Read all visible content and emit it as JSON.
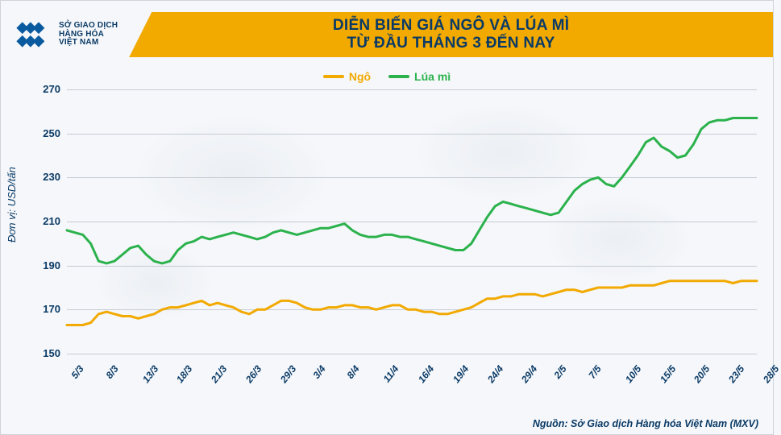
{
  "logo": {
    "line1": "SỞ GIAO DỊCH",
    "line2": "HÀNG HÓA",
    "line3": "VIỆT NAM"
  },
  "title": {
    "line1": "DIỄN BIẾN GIÁ NGÔ VÀ LÚA MÌ",
    "line2": "TỪ ĐẦU THÁNG 3 ĐẾN NAY"
  },
  "legend": [
    {
      "label": "Ngô",
      "color": "#f2a900"
    },
    {
      "label": "Lúa mì",
      "color": "#2bb24c"
    }
  ],
  "y_axis_label": "Đơn vị: USD/tấn",
  "source": "Nguồn: Sở Giao dịch Hàng hóa Việt Nam (MXV)",
  "chart": {
    "type": "line",
    "background_color": "#f5f7fa",
    "grid_color": "#c6ccd4",
    "axis_text_color": "#0a3a66",
    "title_bar_color": "#f2a900",
    "title_text_color": "#0a3a66",
    "ylim": [
      150,
      270
    ],
    "ytick_step": 20,
    "line_width": 3,
    "tick_fontsize": 12,
    "label_fontsize": 13,
    "title_fontsize": 19,
    "x_labels": [
      "5/3",
      "8/3",
      "13/3",
      "18/3",
      "21/3",
      "26/3",
      "29/3",
      "3/4",
      "8/4",
      "11/4",
      "16/4",
      "19/4",
      "24/4",
      "29/4",
      "2/5",
      "7/5",
      "10/5",
      "15/5",
      "20/5",
      "23/5",
      "28/5"
    ],
    "series": {
      "ngo": {
        "color": "#f2a900",
        "values": [
          163,
          163,
          163,
          164,
          168,
          169,
          168,
          167,
          167,
          166,
          167,
          168,
          170,
          171,
          171,
          172,
          173,
          174,
          172,
          173,
          172,
          171,
          169,
          168,
          170,
          170,
          172,
          174,
          174,
          173,
          171,
          170,
          170,
          171,
          171,
          172,
          172,
          171,
          171,
          170,
          171,
          172,
          172,
          170,
          170,
          169,
          169,
          168,
          168,
          169,
          170,
          171,
          173,
          175,
          175,
          176,
          176,
          177,
          177,
          177,
          176,
          177,
          178,
          179,
          179,
          178,
          179,
          180,
          180,
          180,
          180,
          181,
          181,
          181,
          181,
          182,
          183,
          183,
          183,
          183,
          183,
          183,
          183,
          183,
          182,
          183,
          183,
          183
        ]
      },
      "lua_mi": {
        "color": "#2bb24c",
        "values": [
          206,
          205,
          204,
          200,
          192,
          191,
          192,
          195,
          198,
          199,
          195,
          192,
          191,
          192,
          197,
          200,
          201,
          203,
          202,
          203,
          204,
          205,
          204,
          203,
          202,
          203,
          205,
          206,
          205,
          204,
          205,
          206,
          207,
          207,
          208,
          209,
          206,
          204,
          203,
          203,
          204,
          204,
          203,
          203,
          202,
          201,
          200,
          199,
          198,
          197,
          197,
          200,
          206,
          212,
          217,
          219,
          218,
          217,
          216,
          215,
          214,
          213,
          214,
          219,
          224,
          227,
          229,
          230,
          227,
          226,
          230,
          235,
          240,
          246,
          248,
          244,
          242,
          239,
          240,
          245,
          252,
          255,
          256,
          256,
          257,
          257,
          257,
          257
        ]
      }
    }
  }
}
